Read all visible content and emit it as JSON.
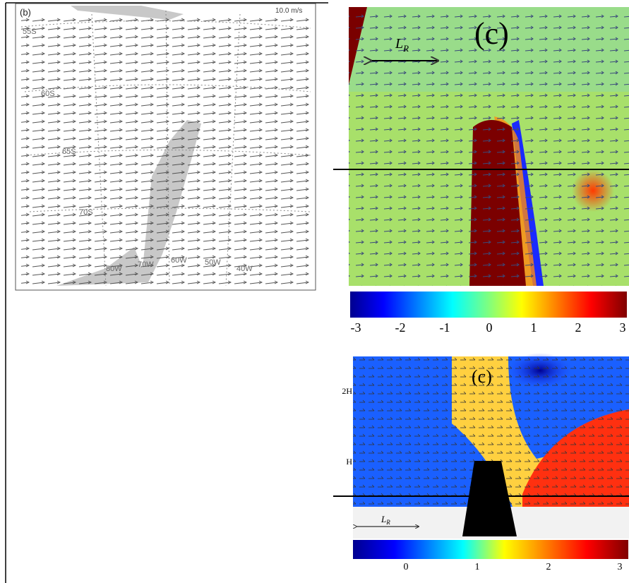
{
  "panel_b": {
    "label": "(b)",
    "scale": "10.0 m/s",
    "lat_labels": [
      "55S",
      "60S",
      "65S",
      "70S"
    ],
    "lon_labels": [
      "80W",
      "70W",
      "60W",
      "50W",
      "40W"
    ]
  },
  "panel_c_top": {
    "label": "(c)",
    "length_label": {
      "main": "L",
      "sub": "R"
    },
    "colorbar_ticks": [
      "-3",
      "-2",
      "-1",
      "0",
      "1",
      "2",
      "3"
    ]
  },
  "panel_c_bottom": {
    "label": "(c)",
    "height_labels": [
      "2H",
      "H"
    ],
    "length_label": {
      "main": "L",
      "sub": "R"
    },
    "colorbar_ticks": [
      "0",
      "1",
      "2",
      "3"
    ]
  }
}
